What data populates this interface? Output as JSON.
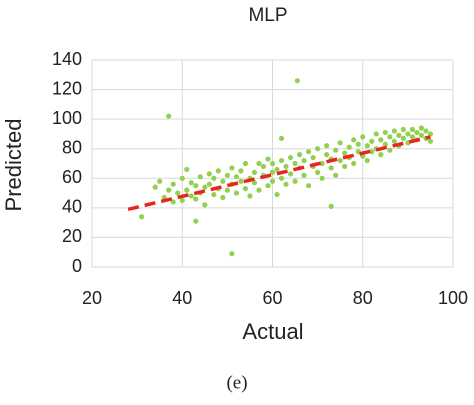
{
  "chart_data": {
    "type": "scatter",
    "title": "MLP",
    "x_label": "Actual",
    "y_label": "Predicted",
    "caption": "(e)",
    "x": [
      34,
      35,
      36,
      37,
      38,
      38,
      39,
      40,
      40,
      41,
      41,
      42,
      42,
      43,
      43,
      44,
      44,
      45,
      45,
      46,
      46,
      47,
      47,
      48,
      48,
      49,
      49,
      50,
      50,
      51,
      51,
      52,
      52,
      53,
      53,
      54,
      54,
      55,
      55,
      56,
      56,
      57,
      57,
      58,
      58,
      59,
      59,
      60,
      60,
      60,
      61,
      61,
      62,
      62,
      63,
      63,
      64,
      64,
      65,
      65,
      66,
      66,
      67,
      67,
      68,
      68,
      69,
      69,
      70,
      70,
      71,
      71,
      72,
      72,
      73,
      73,
      74,
      74,
      75,
      75,
      76,
      76,
      77,
      77,
      78,
      78,
      79,
      79,
      80,
      80,
      81,
      81,
      82,
      82,
      83,
      83,
      84,
      84,
      85,
      85,
      86,
      86,
      87,
      87,
      88,
      88,
      89,
      89,
      90,
      90,
      91,
      91,
      92,
      92,
      93,
      93,
      94,
      94,
      95,
      95,
      37,
      65.5,
      51,
      31,
      62,
      43,
      73
    ],
    "values": [
      54,
      58,
      47,
      52,
      44,
      56,
      50,
      60,
      45,
      66,
      52,
      48,
      57,
      55,
      46,
      61,
      50,
      54,
      42,
      63,
      56,
      49,
      60,
      53,
      65,
      58,
      47,
      62,
      52,
      56,
      67,
      50,
      61,
      58,
      65,
      53,
      70,
      60,
      48,
      64,
      57,
      70,
      52,
      62,
      68,
      55,
      73,
      64,
      58,
      70,
      49,
      66,
      72,
      60,
      68,
      56,
      74,
      63,
      70,
      58,
      67,
      76,
      62,
      72,
      55,
      78,
      68,
      74,
      64,
      80,
      70,
      60,
      76,
      82,
      67,
      73,
      79,
      62,
      72,
      84,
      77,
      68,
      81,
      74,
      86,
      70,
      78,
      83,
      75,
      88,
      82,
      72,
      85,
      78,
      90,
      80,
      76,
      86,
      83,
      91,
      79,
      88,
      85,
      92,
      82,
      89,
      87,
      93,
      84,
      90,
      88,
      93,
      86,
      91,
      89,
      94,
      87,
      92,
      90,
      85,
      102,
      126,
      9,
      34,
      87,
      31,
      41
    ],
    "color": "#92d050",
    "trendline": {
      "x": [
        28,
        95
      ],
      "values": [
        39,
        88
      ],
      "color": "#e8251f"
    },
    "xlim": [
      20,
      100
    ],
    "xticks": [
      20,
      40,
      60,
      80,
      100
    ],
    "ylim": [
      0,
      140
    ],
    "yticks": [
      0,
      20,
      40,
      60,
      80,
      100,
      120,
      140
    ],
    "grid": true
  }
}
